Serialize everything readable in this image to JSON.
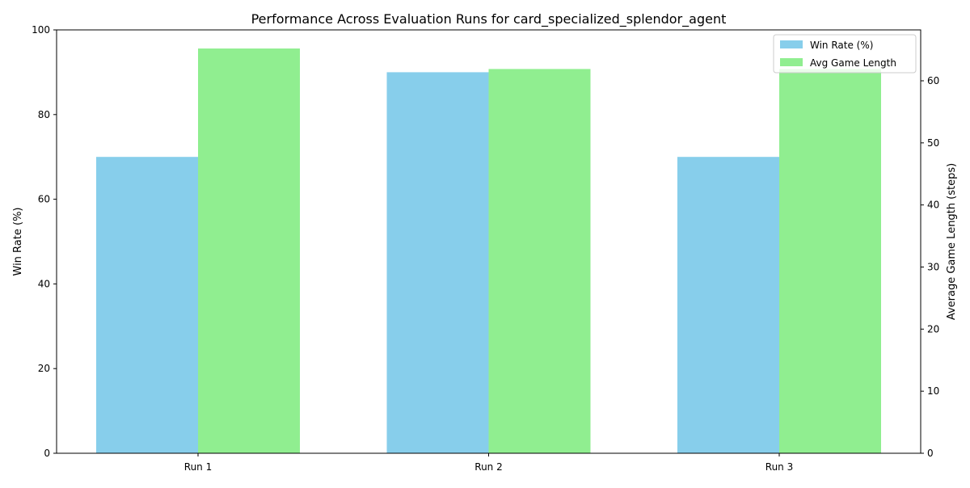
{
  "chart_data": {
    "type": "bar",
    "title": "Performance Across Evaluation Runs for card_specialized_splendor_agent",
    "categories": [
      "Run 1",
      "Run 2",
      "Run 3"
    ],
    "series": [
      {
        "name": "Win Rate (%)",
        "axis": "left",
        "color": "#87CEEB",
        "values": [
          70,
          90,
          70
        ]
      },
      {
        "name": "Avg Game Length",
        "axis": "right",
        "color": "#90EE90",
        "values": [
          65.2,
          61.9,
          61.9
        ]
      }
    ],
    "ylabel_left": "Win Rate (%)",
    "ylabel_right": "Average Game Length (steps)",
    "ylim_left": [
      0,
      100
    ],
    "yticks_left": [
      0,
      20,
      40,
      60,
      80,
      100
    ],
    "ylim_right": [
      0,
      68.2
    ],
    "yticks_right": [
      0,
      10,
      20,
      30,
      40,
      50,
      60
    ],
    "grid": false,
    "legend_position": "top-right"
  }
}
